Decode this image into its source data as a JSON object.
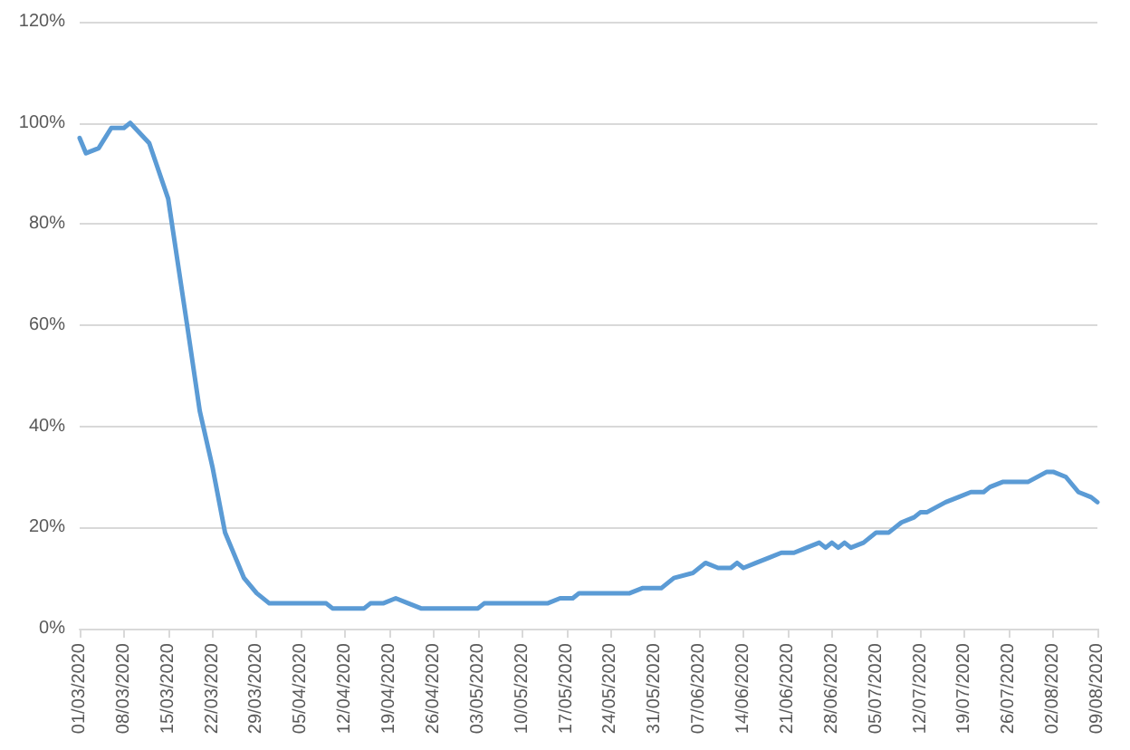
{
  "chart_data": {
    "type": "line",
    "x": [
      "2020-03-01",
      "2020-03-02",
      "2020-03-04",
      "2020-03-06",
      "2020-03-08",
      "2020-03-09",
      "2020-03-12",
      "2020-03-15",
      "2020-03-18",
      "2020-03-20",
      "2020-03-22",
      "2020-03-24",
      "2020-03-27",
      "2020-03-29",
      "2020-03-31",
      "2020-04-09",
      "2020-04-10",
      "2020-04-15",
      "2020-04-16",
      "2020-04-18",
      "2020-04-20",
      "2020-04-22",
      "2020-04-24",
      "2020-05-03",
      "2020-05-04",
      "2020-05-14",
      "2020-05-16",
      "2020-05-18",
      "2020-05-19",
      "2020-05-27",
      "2020-05-29",
      "2020-06-01",
      "2020-06-03",
      "2020-06-06",
      "2020-06-08",
      "2020-06-10",
      "2020-06-12",
      "2020-06-13",
      "2020-06-14",
      "2020-06-16",
      "2020-06-18",
      "2020-06-20",
      "2020-06-22",
      "2020-06-24",
      "2020-06-26",
      "2020-06-27",
      "2020-06-28",
      "2020-06-29",
      "2020-06-30",
      "2020-07-01",
      "2020-07-03",
      "2020-07-05",
      "2020-07-07",
      "2020-07-09",
      "2020-07-11",
      "2020-07-12",
      "2020-07-13",
      "2020-07-16",
      "2020-07-18",
      "2020-07-20",
      "2020-07-22",
      "2020-07-23",
      "2020-07-25",
      "2020-07-29",
      "2020-08-01",
      "2020-08-02",
      "2020-08-04",
      "2020-08-06",
      "2020-08-08",
      "2020-08-09"
    ],
    "series": [
      {
        "color": "#5b9bd5",
        "values": [
          97,
          94,
          95,
          99,
          99,
          100,
          96,
          85,
          60,
          43,
          32,
          19,
          10,
          7,
          5,
          5,
          4,
          4,
          5,
          5,
          6,
          5,
          4,
          4,
          5,
          5,
          6,
          6,
          7,
          7,
          8,
          8,
          10,
          11,
          13,
          12,
          12,
          13,
          12,
          13,
          14,
          15,
          15,
          16,
          17,
          16,
          17,
          16,
          17,
          16,
          17,
          19,
          19,
          21,
          22,
          23,
          23,
          25,
          26,
          27,
          27,
          28,
          29,
          29,
          31,
          31,
          30,
          27,
          26,
          25
        ]
      }
    ],
    "xlim": [
      "2020-03-01",
      "2020-08-09"
    ],
    "xticks": [
      {
        "value": "2020-03-01",
        "label": "01/03/2020"
      },
      {
        "value": "2020-03-08",
        "label": "08/03/2020"
      },
      {
        "value": "2020-03-15",
        "label": "15/03/2020"
      },
      {
        "value": "2020-03-22",
        "label": "22/03/2020"
      },
      {
        "value": "2020-03-29",
        "label": "29/03/2020"
      },
      {
        "value": "2020-04-05",
        "label": "05/04/2020"
      },
      {
        "value": "2020-04-12",
        "label": "12/04/2020"
      },
      {
        "value": "2020-04-19",
        "label": "19/04/2020"
      },
      {
        "value": "2020-04-26",
        "label": "26/04/2020"
      },
      {
        "value": "2020-05-03",
        "label": "03/05/2020"
      },
      {
        "value": "2020-05-10",
        "label": "10/05/2020"
      },
      {
        "value": "2020-05-17",
        "label": "17/05/2020"
      },
      {
        "value": "2020-05-24",
        "label": "24/05/2020"
      },
      {
        "value": "2020-05-31",
        "label": "31/05/2020"
      },
      {
        "value": "2020-06-07",
        "label": "07/06/2020"
      },
      {
        "value": "2020-06-14",
        "label": "14/06/2020"
      },
      {
        "value": "2020-06-21",
        "label": "21/06/2020"
      },
      {
        "value": "2020-06-28",
        "label": "28/06/2020"
      },
      {
        "value": "2020-07-05",
        "label": "05/07/2020"
      },
      {
        "value": "2020-07-12",
        "label": "12/07/2020"
      },
      {
        "value": "2020-07-19",
        "label": "19/07/2020"
      },
      {
        "value": "2020-07-26",
        "label": "26/07/2020"
      },
      {
        "value": "2020-08-02",
        "label": "02/08/2020"
      },
      {
        "value": "2020-08-09",
        "label": "09/08/2020"
      }
    ],
    "ylim": [
      0,
      120
    ],
    "yticks": [
      {
        "value": 0,
        "label": "0%"
      },
      {
        "value": 20,
        "label": "20%"
      },
      {
        "value": 40,
        "label": "40%"
      },
      {
        "value": 60,
        "label": "60%"
      },
      {
        "value": 80,
        "label": "80%"
      },
      {
        "value": 100,
        "label": "100%"
      },
      {
        "value": 120,
        "label": "120%"
      }
    ],
    "grid": "y",
    "marker": "none",
    "line_style": "solid"
  }
}
